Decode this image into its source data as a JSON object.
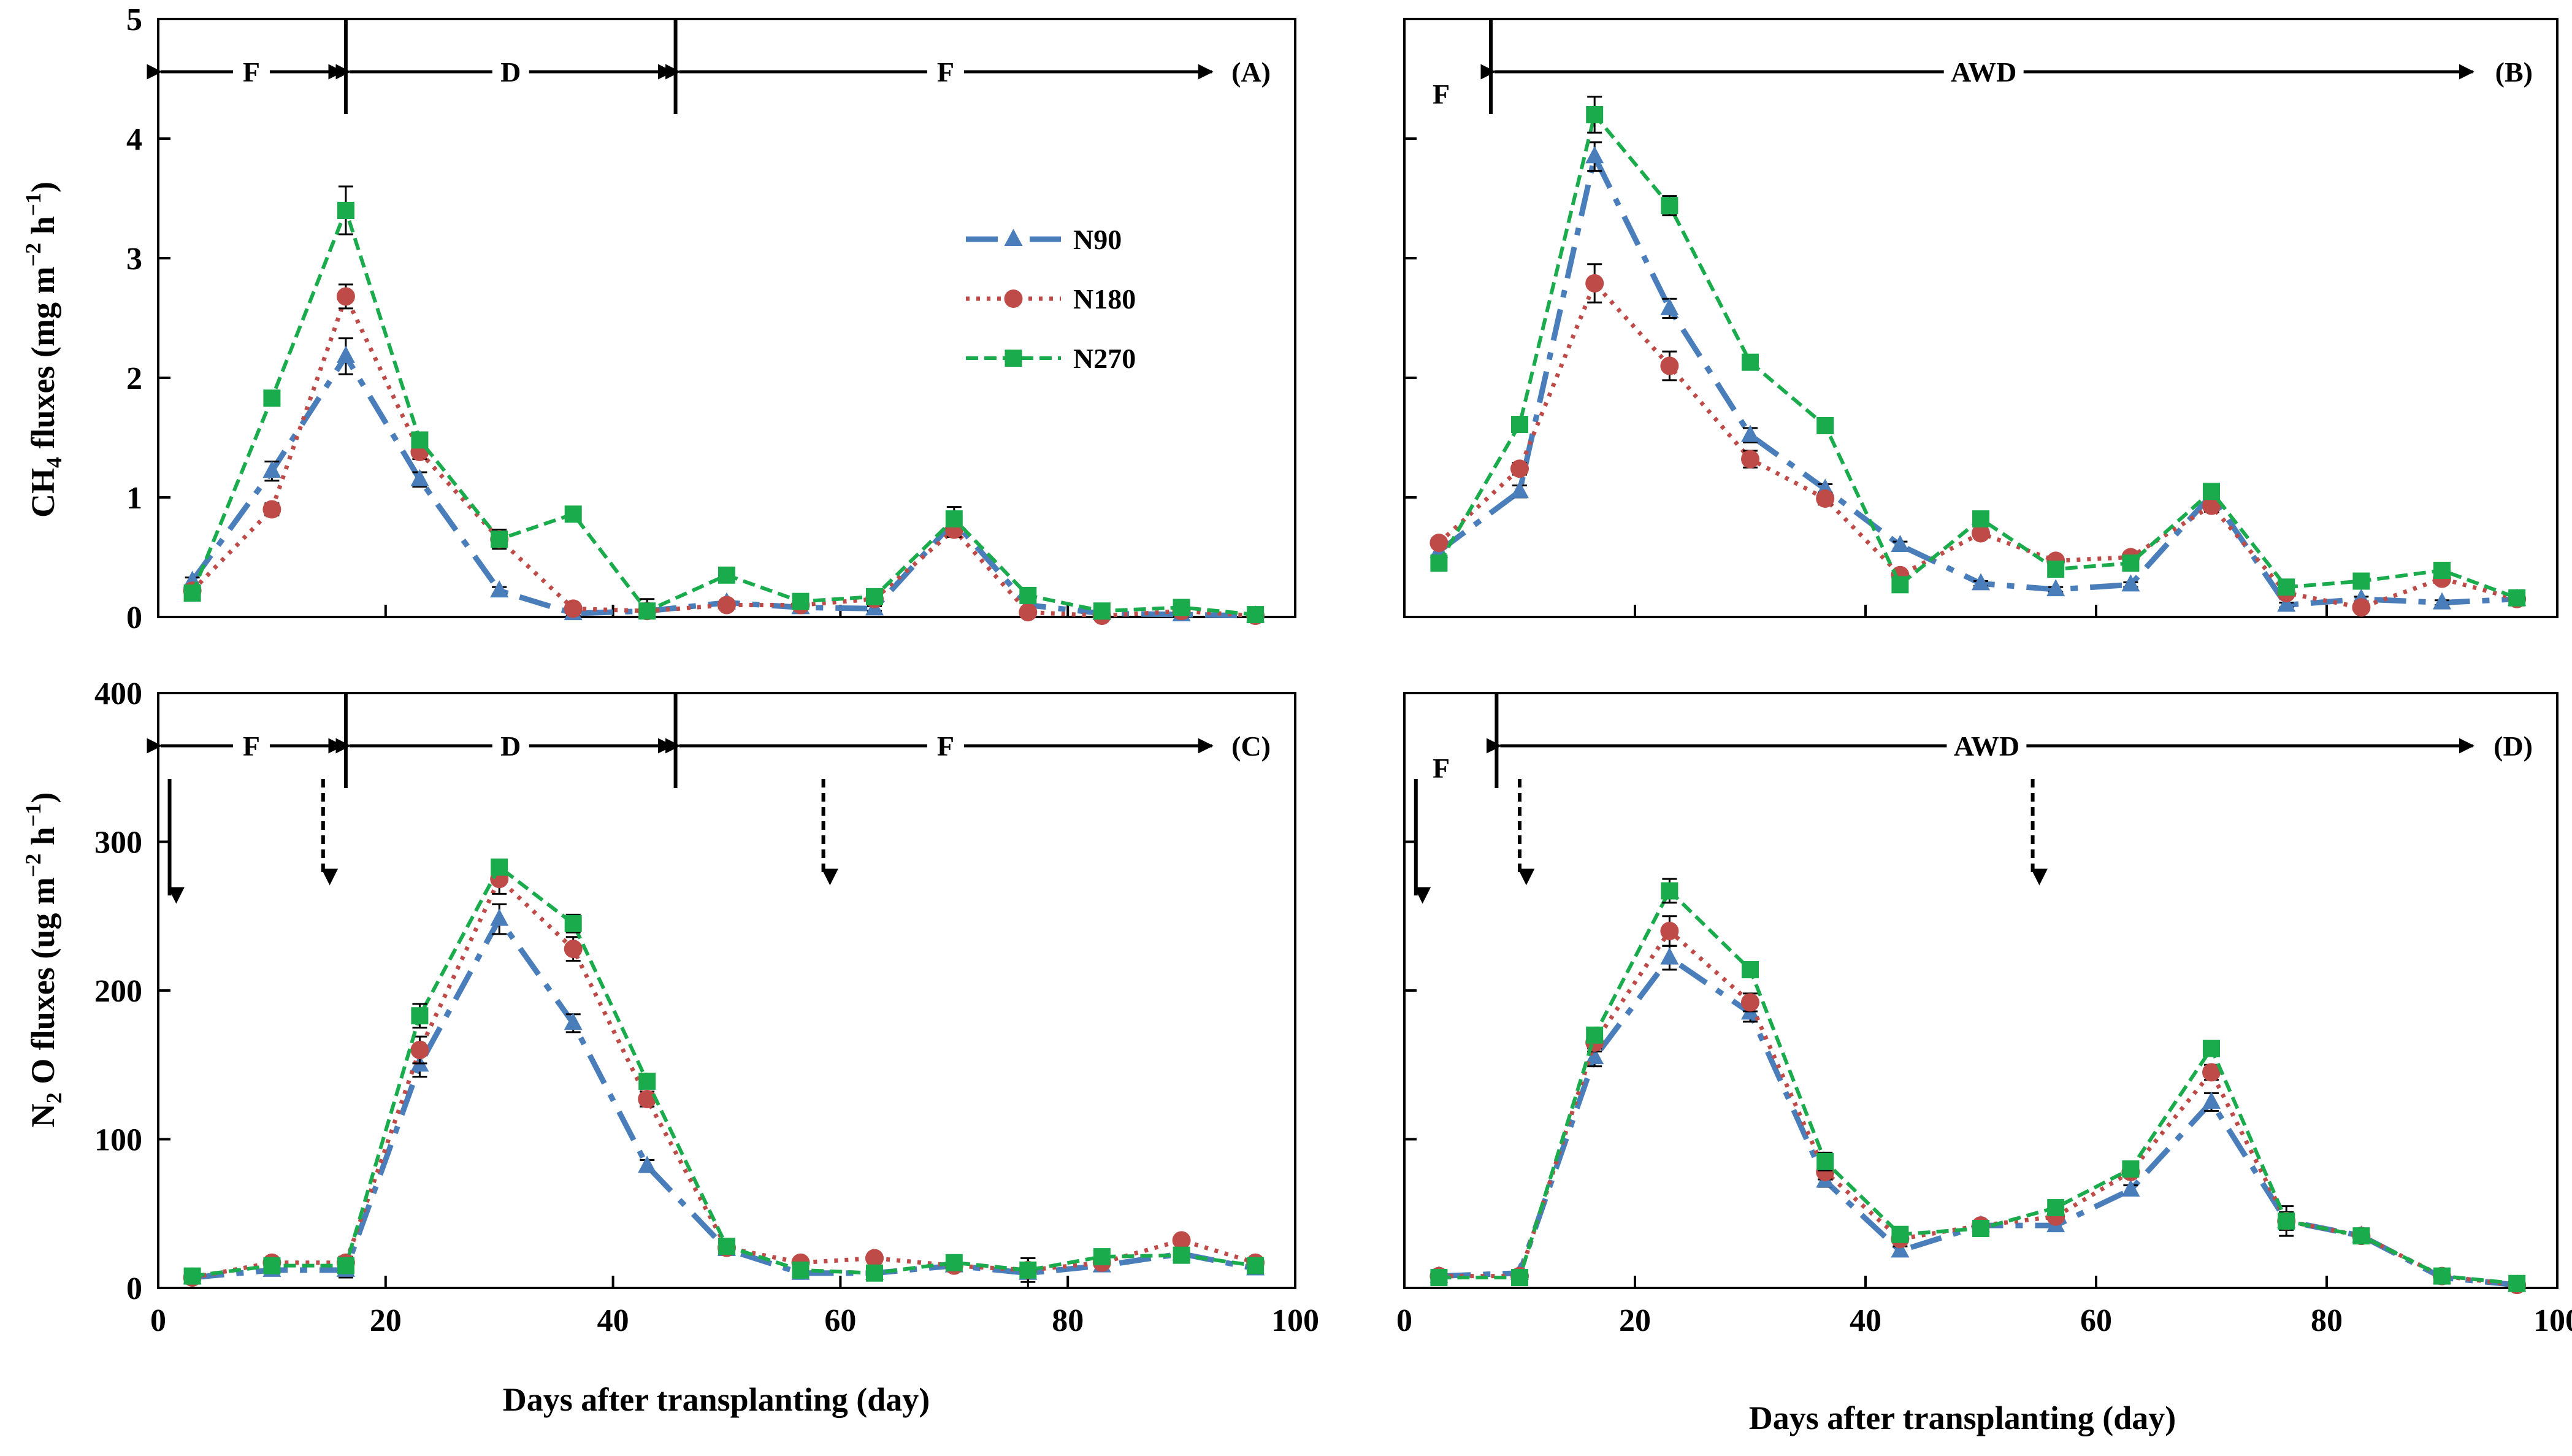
{
  "colors": {
    "n90": "#4a7ebb",
    "n180": "#be4b48",
    "n270": "#1aab4c",
    "axis": "#000000"
  },
  "legend": [
    "N90",
    "N180",
    "N270"
  ],
  "axes": {
    "ch4_ylabel_main": "CH",
    "ch4_ylabel_sub": "4",
    "ch4_ylabel_rest": " fluxes (mg m",
    "ch4_ylabel_sup1": "−2",
    "ch4_ylabel_h": " h",
    "ch4_ylabel_sup2": "−1",
    "ch4_ylabel_end": ")",
    "n2o_ylabel_main": "N",
    "n2o_ylabel_sub": "2",
    "n2o_ylabel_rest": " O fluxes (ug m",
    "n2o_ylabel_sup1": "−2",
    "n2o_ylabel_h": " h",
    "n2o_ylabel_sup2": "−1",
    "n2o_ylabel_end": ")",
    "xlabel_left": "Days after transplanting (day)",
    "xlabel_right": "Days after transplanting (day)",
    "x_ticks": [
      "0",
      "20",
      "40",
      "60",
      "80",
      "100"
    ],
    "ch4_ticks": [
      "0",
      "1",
      "2",
      "3",
      "4",
      "5"
    ],
    "n2o_ticks": [
      "0",
      "100",
      "200",
      "300",
      "400"
    ]
  },
  "chart_data": [
    {
      "type": "line",
      "panel": "(A)",
      "xlim": [
        0,
        100
      ],
      "ylim": [
        0,
        5
      ],
      "x": [
        3,
        10,
        16.5,
        23,
        30,
        36.5,
        43,
        50,
        56.5,
        63,
        70,
        76.5,
        83,
        90,
        96.5
      ],
      "series": [
        {
          "name": "N90",
          "values": [
            0.3,
            1.22,
            2.18,
            1.15,
            0.22,
            0.03,
            0.05,
            0.12,
            0.08,
            0.07,
            0.8,
            0.1,
            0.03,
            0.02,
            0.01
          ],
          "err": [
            0.03,
            0.08,
            0.15,
            0.06,
            0.03,
            0.02,
            0.02,
            0.02,
            0.02,
            0.02,
            0.12,
            0.02,
            0.02,
            0.02,
            0.02
          ]
        },
        {
          "name": "N180",
          "values": [
            0.22,
            0.9,
            2.68,
            1.38,
            0.65,
            0.07,
            0.05,
            0.1,
            0.1,
            0.15,
            0.73,
            0.04,
            0.01,
            0.05,
            0.01
          ],
          "err": [
            0.03,
            0.05,
            0.1,
            0.06,
            0.08,
            0.02,
            0.02,
            0.02,
            0.02,
            0.03,
            0.06,
            0.02,
            0.02,
            0.02,
            0.02
          ]
        },
        {
          "name": "N270",
          "values": [
            0.2,
            1.83,
            3.4,
            1.48,
            0.65,
            0.86,
            0.05,
            0.35,
            0.13,
            0.17,
            0.82,
            0.18,
            0.05,
            0.08,
            0.02
          ],
          "err": [
            0.03,
            0.05,
            0.2,
            0.05,
            0.05,
            0.04,
            0.1,
            0.03,
            0.02,
            0.03,
            0.06,
            0.03,
            0.02,
            0.02,
            0.02
          ]
        }
      ],
      "phases": [
        {
          "label": "F",
          "from": 0,
          "to": 16.5
        },
        {
          "label": "D",
          "from": 16.5,
          "to": 45.5
        },
        {
          "label": "F",
          "from": 45.5,
          "to": 93
        }
      ],
      "phase_markers": [
        16.5,
        45.5
      ],
      "panel_label": "(A)",
      "arrows_solid": [],
      "arrows_dashed": []
    },
    {
      "type": "line",
      "panel": "(B)",
      "xlim": [
        0,
        100
      ],
      "ylim": [
        0,
        5
      ],
      "x": [
        3,
        10,
        16.5,
        23,
        30,
        36.5,
        43,
        50,
        56.5,
        63,
        70,
        76.5,
        83,
        90,
        96.5
      ],
      "series": [
        {
          "name": "N90",
          "values": [
            0.55,
            1.05,
            3.85,
            2.58,
            1.52,
            1.07,
            0.6,
            0.28,
            0.23,
            0.27,
            1.02,
            0.1,
            0.15,
            0.12,
            0.15
          ],
          "err": [
            0.03,
            0.05,
            0.12,
            0.08,
            0.06,
            0.04,
            0.03,
            0.02,
            0.02,
            0.02,
            0.05,
            0.02,
            0.02,
            0.02,
            0.02
          ]
        },
        {
          "name": "N180",
          "values": [
            0.62,
            1.24,
            2.79,
            2.1,
            1.32,
            0.99,
            0.35,
            0.7,
            0.47,
            0.5,
            0.93,
            0.2,
            0.08,
            0.32,
            0.15
          ],
          "err": [
            0.03,
            0.05,
            0.16,
            0.12,
            0.07,
            0.05,
            0.03,
            0.04,
            0.03,
            0.03,
            0.05,
            0.02,
            0.02,
            0.02,
            0.02
          ]
        },
        {
          "name": "N270",
          "values": [
            0.45,
            1.61,
            4.2,
            3.44,
            2.13,
            1.6,
            0.27,
            0.82,
            0.4,
            0.45,
            1.05,
            0.25,
            0.3,
            0.39,
            0.16
          ],
          "err": [
            0.03,
            0.04,
            0.15,
            0.08,
            0.04,
            0.04,
            0.03,
            0.04,
            0.03,
            0.03,
            0.04,
            0.02,
            0.02,
            0.03,
            0.02
          ]
        }
      ],
      "phases": [
        {
          "label": "F",
          "from": 0,
          "to": 7.5
        },
        {
          "label": "AWD",
          "from": 7.5,
          "to": 93
        }
      ],
      "phase_markers": [
        7.5
      ],
      "panel_label": "(B)",
      "arrows_solid": [],
      "arrows_dashed": []
    },
    {
      "type": "line",
      "panel": "(C)",
      "xlim": [
        0,
        100
      ],
      "ylim": [
        0,
        400
      ],
      "x": [
        3,
        10,
        16.5,
        23,
        30,
        36.5,
        43,
        50,
        56.5,
        63,
        70,
        76.5,
        83,
        90,
        96.5
      ],
      "series": [
        {
          "name": "N90",
          "values": [
            7,
            12,
            12,
            150,
            248,
            178,
            82,
            26,
            10,
            10,
            15,
            10,
            15,
            23,
            13
          ],
          "err": [
            2,
            3,
            5,
            8,
            10,
            6,
            4,
            3,
            2,
            2,
            3,
            10,
            3,
            3,
            2
          ]
        },
        {
          "name": "N180",
          "values": [
            7,
            17,
            17,
            160,
            275,
            228,
            127,
            27,
            17,
            20,
            15,
            12,
            17,
            32,
            17
          ],
          "err": [
            2,
            3,
            4,
            9,
            10,
            8,
            5,
            3,
            2,
            2,
            3,
            8,
            3,
            3,
            2
          ]
        },
        {
          "name": "N270",
          "values": [
            8,
            15,
            15,
            183,
            283,
            245,
            139,
            28,
            12,
            10,
            17,
            12,
            21,
            22,
            15
          ],
          "err": [
            2,
            3,
            4,
            8,
            5,
            6,
            5,
            3,
            2,
            2,
            3,
            5,
            3,
            3,
            2
          ]
        }
      ],
      "phases": [
        {
          "label": "F",
          "from": 0,
          "to": 16.5
        },
        {
          "label": "D",
          "from": 16.5,
          "to": 45.5
        },
        {
          "label": "F",
          "from": 45.5,
          "to": 93
        }
      ],
      "phase_markers": [
        16.5,
        45.5
      ],
      "panel_label": "(C)",
      "arrows_solid": [
        1
      ],
      "arrows_dashed": [
        14.5,
        58.5
      ]
    },
    {
      "type": "line",
      "panel": "(D)",
      "xlim": [
        0,
        100
      ],
      "ylim": [
        0,
        400
      ],
      "x": [
        3,
        10,
        16.5,
        23,
        30,
        36.5,
        43,
        50,
        56.5,
        63,
        70,
        76.5,
        83,
        90,
        96.5
      ],
      "series": [
        {
          "name": "N90",
          "values": [
            8,
            10,
            155,
            222,
            185,
            72,
            25,
            42,
            42,
            66,
            125,
            45,
            35,
            7,
            2
          ],
          "err": [
            2,
            2,
            6,
            8,
            6,
            4,
            3,
            3,
            3,
            3,
            6,
            10,
            3,
            2,
            1
          ]
        },
        {
          "name": "N180",
          "values": [
            8,
            8,
            165,
            240,
            192,
            78,
            33,
            42,
            48,
            78,
            145,
            45,
            35,
            8,
            2
          ],
          "err": [
            2,
            2,
            6,
            10,
            6,
            5,
            3,
            3,
            3,
            3,
            5,
            6,
            3,
            2,
            1
          ]
        },
        {
          "name": "N270",
          "values": [
            7,
            7,
            170,
            267,
            214,
            85,
            36,
            40,
            54,
            80,
            161,
            45,
            35,
            8,
            3
          ],
          "err": [
            2,
            2,
            5,
            8,
            5,
            6,
            3,
            3,
            3,
            3,
            4,
            5,
            3,
            2,
            1
          ]
        }
      ],
      "phases": [
        {
          "label": "F",
          "from": 0,
          "to": 8
        },
        {
          "label": "AWD",
          "from": 8,
          "to": 93
        }
      ],
      "phase_markers": [
        8
      ],
      "panel_label": "(D)",
      "arrows_solid": [
        1
      ],
      "arrows_dashed": [
        10,
        54.5
      ]
    }
  ]
}
